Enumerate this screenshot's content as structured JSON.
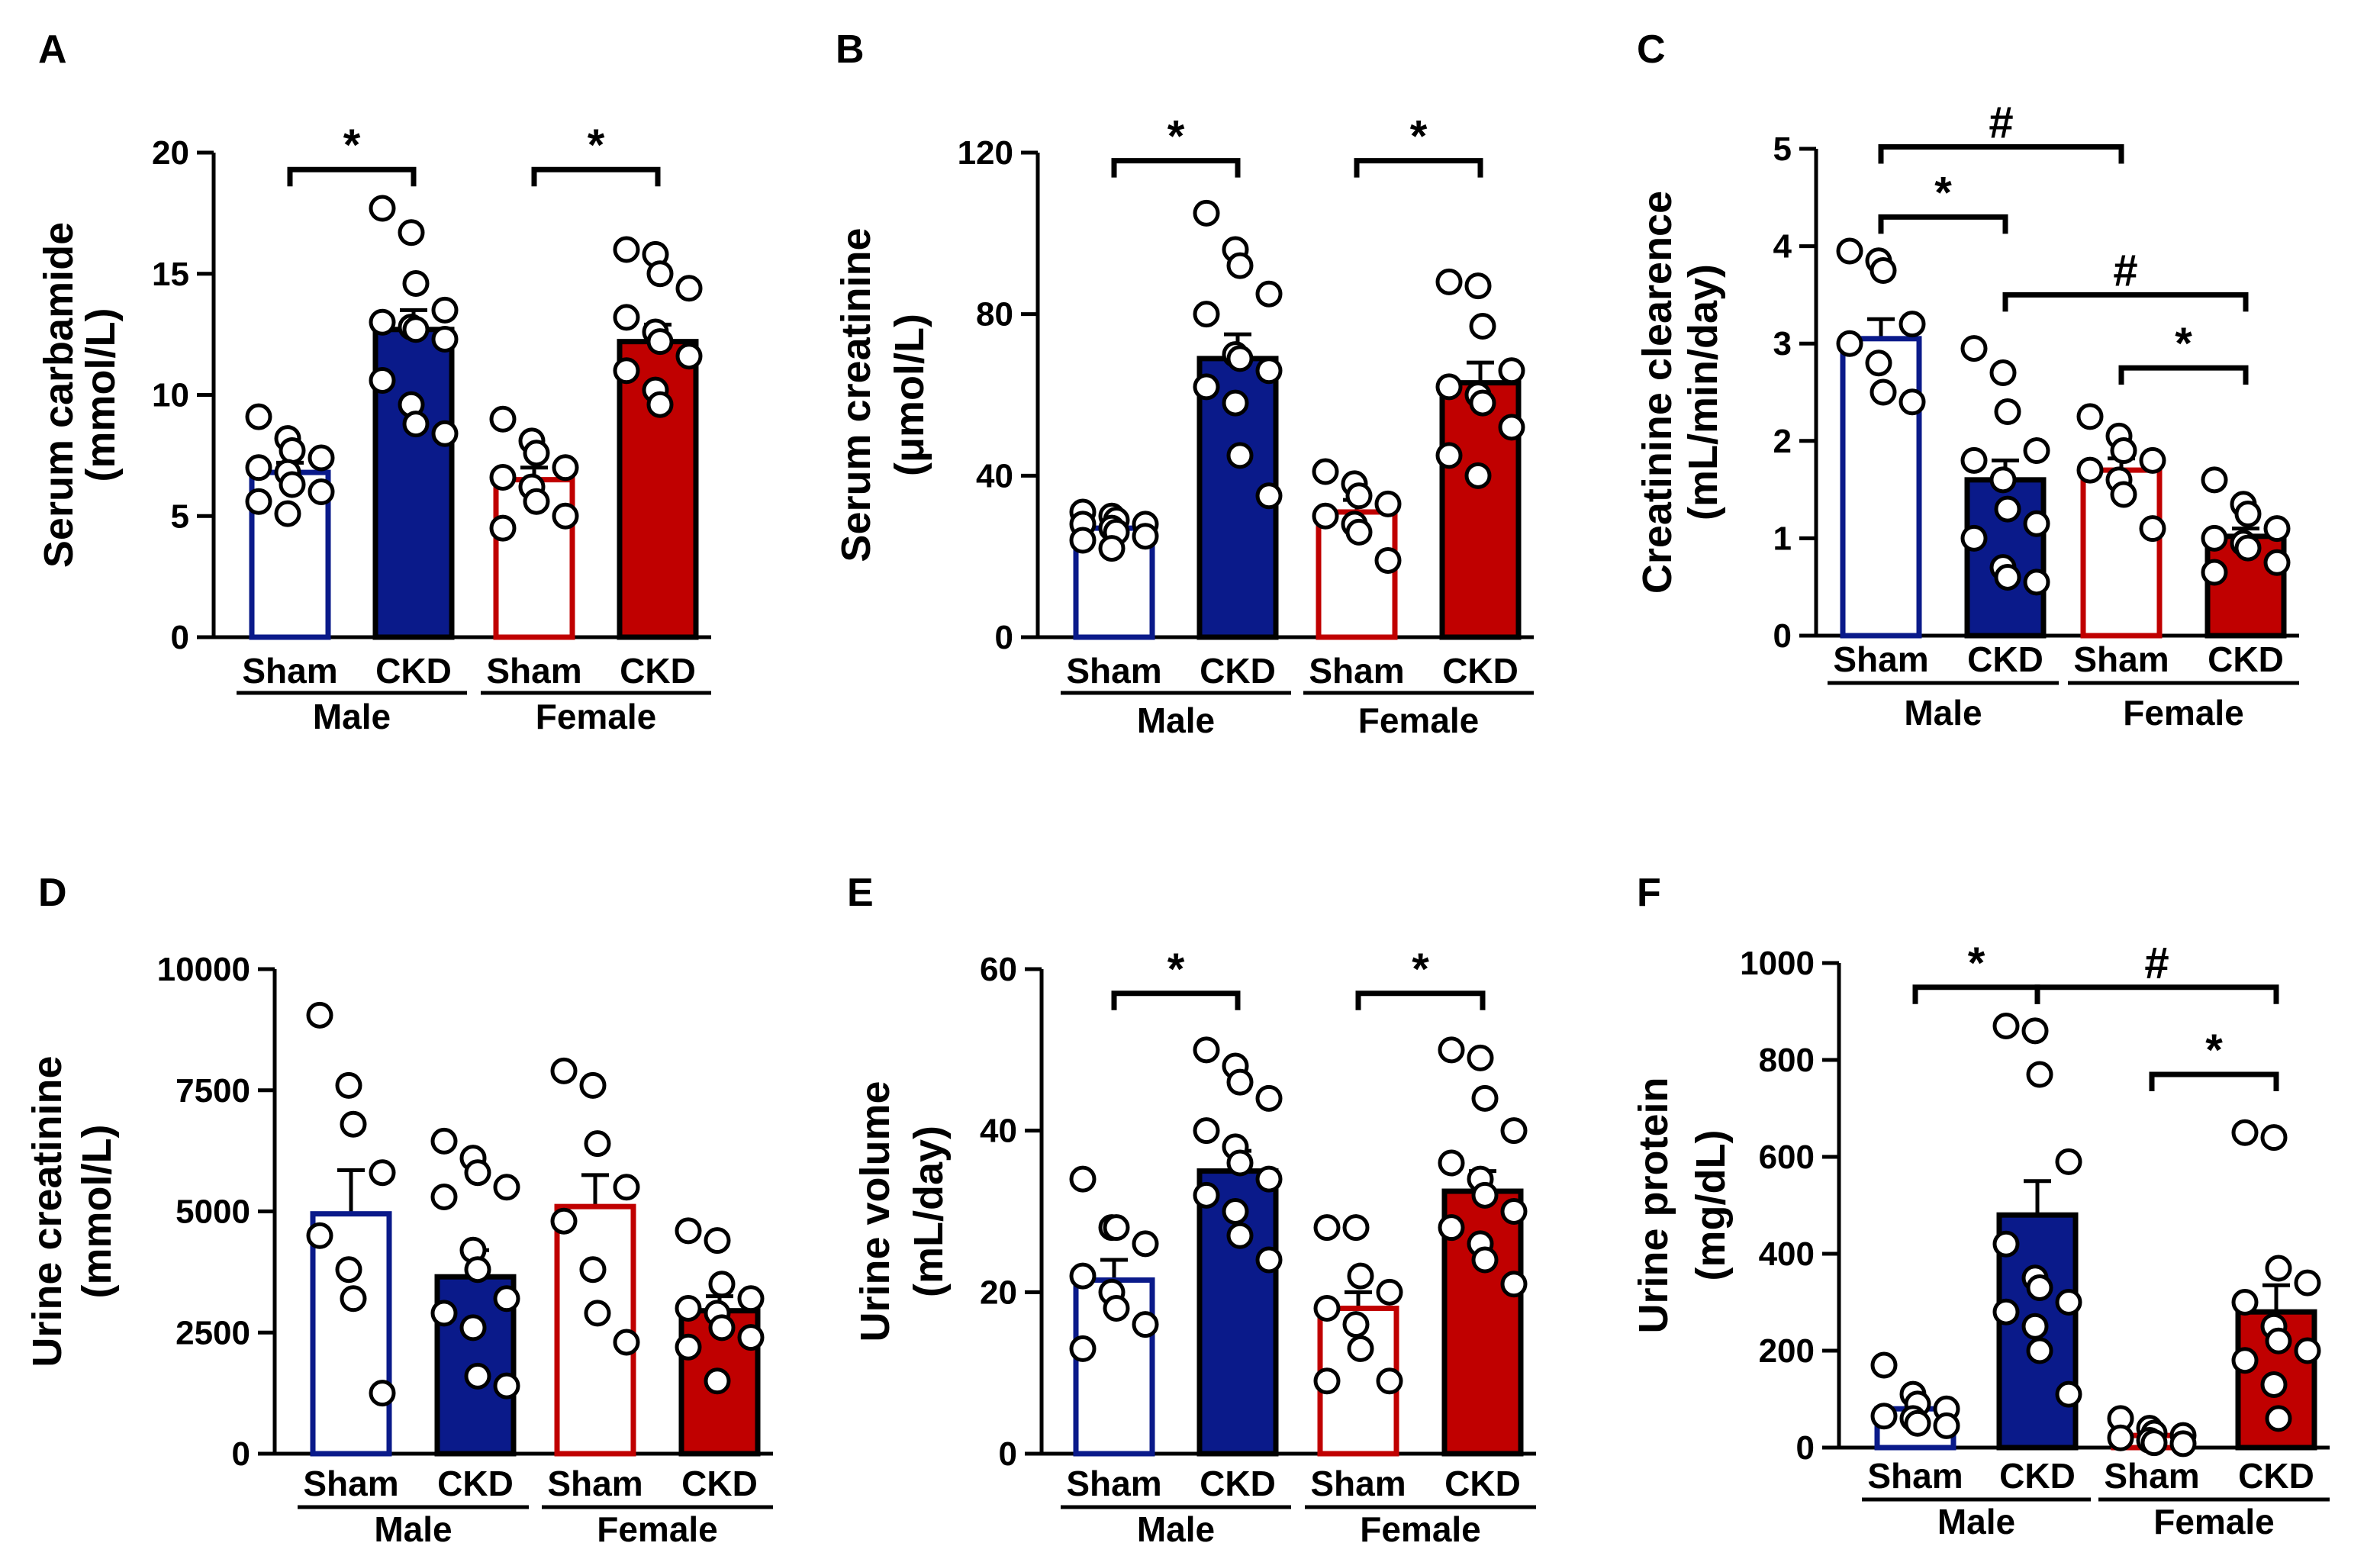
{
  "colors": {
    "male": "#0a1a8a",
    "female": "#c00000",
    "axis": "#000000",
    "dot_fill": "#ffffff"
  },
  "legend_groups": [
    "Sham",
    "CKD",
    "Sham",
    "CKD"
  ],
  "sexes": [
    "Male",
    "Female"
  ],
  "chart_data": [
    {
      "panel": "A",
      "type": "bar",
      "ylabel": [
        "Serum carbamide",
        "(mmol/L)"
      ],
      "ylim": [
        0,
        20
      ],
      "yticks": [
        0,
        5,
        10,
        15,
        20
      ],
      "categories": [
        "Sham",
        "CKD",
        "Sham",
        "CKD"
      ],
      "groups": [
        "Male",
        "Female"
      ],
      "values": [
        6.8,
        12.7,
        6.5,
        12.2
      ],
      "sem": [
        0.4,
        0.8,
        0.5,
        0.7
      ],
      "points": [
        [
          9.1,
          8.2,
          7.7,
          7.4,
          7.0,
          6.8,
          6.3,
          6.0,
          5.6,
          5.1
        ],
        [
          17.7,
          16.7,
          14.6,
          13.5,
          13.0,
          12.8,
          12.7,
          12.3,
          10.6,
          9.6,
          8.8,
          8.4
        ],
        [
          9.0,
          8.1,
          7.6,
          7.0,
          6.6,
          6.2,
          5.6,
          5.0,
          4.5
        ],
        [
          16.0,
          15.8,
          15.0,
          14.4,
          13.2,
          12.6,
          12.2,
          11.6,
          11.0,
          10.2,
          9.6
        ]
      ],
      "significance": [
        {
          "from": 0,
          "to": 1,
          "label": "*",
          "y": 19.3
        },
        {
          "from": 2,
          "to": 3,
          "label": "*",
          "y": 19.3
        }
      ]
    },
    {
      "panel": "B",
      "type": "bar",
      "ylabel": [
        "Serum creatinine",
        "(μmol/L)"
      ],
      "ylim": [
        0,
        120
      ],
      "yticks": [
        0,
        40,
        80,
        120
      ],
      "categories": [
        "Sham",
        "CKD",
        "Sham",
        "CKD"
      ],
      "groups": [
        "Male",
        "Female"
      ],
      "values": [
        27,
        69,
        31,
        63
      ],
      "sem": [
        1.0,
        6.0,
        3.0,
        5.0
      ],
      "points": [
        [
          31,
          30,
          29,
          28,
          28,
          27,
          26,
          25,
          24,
          22
        ],
        [
          105,
          96,
          92,
          85,
          80,
          70,
          69,
          66,
          62,
          58,
          45,
          35
        ],
        [
          41,
          38,
          35,
          33,
          30,
          28,
          26,
          19
        ],
        [
          88,
          87,
          77,
          66,
          62,
          60,
          58,
          52,
          45,
          40
        ]
      ],
      "significance": [
        {
          "from": 0,
          "to": 1,
          "label": "*",
          "y": 118
        },
        {
          "from": 2,
          "to": 3,
          "label": "*",
          "y": 118
        }
      ]
    },
    {
      "panel": "C",
      "type": "bar",
      "ylabel": [
        "Creatinine clearence",
        "(mL/min/day)"
      ],
      "ylim": [
        0,
        5
      ],
      "yticks": [
        0,
        1,
        2,
        3,
        4,
        5
      ],
      "categories": [
        "Sham",
        "CKD",
        "Sham",
        "CKD"
      ],
      "groups": [
        "Male",
        "Female"
      ],
      "values": [
        3.05,
        1.6,
        1.7,
        1.02
      ],
      "sem": [
        0.2,
        0.2,
        0.12,
        0.08
      ],
      "points": [
        [
          3.95,
          3.85,
          3.75,
          3.2,
          3.0,
          2.8,
          2.5,
          2.4
        ],
        [
          2.95,
          2.7,
          2.3,
          1.9,
          1.8,
          1.6,
          1.3,
          1.15,
          1.0,
          0.7,
          0.6,
          0.55
        ],
        [
          2.25,
          2.05,
          1.9,
          1.8,
          1.7,
          1.6,
          1.45,
          1.1
        ],
        [
          1.6,
          1.35,
          1.25,
          1.1,
          1.0,
          0.95,
          0.9,
          0.75,
          0.65
        ]
      ],
      "significance": [
        {
          "from": 0,
          "to": 1,
          "label": "*",
          "y": 4.3
        },
        {
          "from": 0,
          "to": 2,
          "label": "#",
          "y": 5.02
        },
        {
          "from": 1,
          "to": 3,
          "label": "#",
          "y": 3.5
        },
        {
          "from": 2,
          "to": 3,
          "label": "*",
          "y": 2.75
        }
      ]
    },
    {
      "panel": "D",
      "type": "bar",
      "ylabel": [
        "Urine creatinine",
        "(mmol/L)"
      ],
      "ylim": [
        0,
        10000
      ],
      "yticks": [
        0,
        2500,
        5000,
        7500,
        10000
      ],
      "categories": [
        "Sham",
        "CKD",
        "Sham",
        "CKD"
      ],
      "groups": [
        "Male",
        "Female"
      ],
      "values": [
        4950,
        3650,
        5100,
        2950
      ],
      "sem": [
        900,
        550,
        650,
        300
      ],
      "points": [
        [
          9050,
          7600,
          6800,
          5800,
          4500,
          3800,
          3200,
          1250
        ],
        [
          6450,
          6100,
          5800,
          5500,
          5300,
          4200,
          3800,
          3200,
          2900,
          2600,
          1600,
          1400
        ],
        [
          7900,
          7600,
          6400,
          5500,
          4800,
          3800,
          2900,
          2300
        ],
        [
          4600,
          4400,
          3500,
          3200,
          3000,
          2900,
          2600,
          2400,
          2200,
          1500
        ]
      ],
      "significance": []
    },
    {
      "panel": "E",
      "type": "bar",
      "ylabel": [
        "Urine volume",
        "(mL/day)"
      ],
      "ylim": [
        0,
        60
      ],
      "yticks": [
        0,
        20,
        40,
        60
      ],
      "categories": [
        "Sham",
        "CKD",
        "Sham",
        "CKD"
      ],
      "groups": [
        "Male",
        "Female"
      ],
      "values": [
        21.5,
        35,
        18,
        32.5
      ],
      "sem": [
        2.5,
        2.5,
        2.0,
        2.5
      ],
      "points": [
        [
          34,
          28,
          28,
          26,
          22,
          20,
          18,
          16,
          13
        ],
        [
          50,
          48,
          46,
          44,
          40,
          38,
          36,
          34,
          32,
          30,
          27,
          24
        ],
        [
          28,
          28,
          22,
          20,
          18,
          16,
          13,
          9,
          9
        ],
        [
          50,
          49,
          44,
          40,
          36,
          34,
          32,
          30,
          28,
          26,
          24,
          21
        ]
      ],
      "significance": [
        {
          "from": 0,
          "to": 1,
          "label": "*",
          "y": 57
        },
        {
          "from": 2,
          "to": 3,
          "label": "*",
          "y": 57
        }
      ]
    },
    {
      "panel": "F",
      "type": "bar",
      "ylabel": [
        "Urine protein",
        "(mg/dL)"
      ],
      "ylim": [
        0,
        1000
      ],
      "yticks": [
        0,
        200,
        400,
        600,
        800,
        1000
      ],
      "categories": [
        "Sham",
        "CKD",
        "Sham",
        "CKD"
      ],
      "groups": [
        "Male",
        "Female"
      ],
      "values": [
        80,
        480,
        25,
        280
      ],
      "sem": [
        20,
        70,
        10,
        55
      ],
      "points": [
        [
          170,
          110,
          90,
          80,
          65,
          60,
          50,
          45
        ],
        [
          870,
          860,
          770,
          590,
          420,
          350,
          330,
          300,
          280,
          250,
          200,
          110
        ],
        [
          60,
          40,
          30,
          25,
          20,
          15,
          10,
          8
        ],
        [
          650,
          640,
          370,
          340,
          300,
          250,
          220,
          200,
          180,
          130,
          60
        ]
      ],
      "significance": [
        {
          "from": 0,
          "to": 1,
          "label": "*",
          "y": 950
        },
        {
          "from": 1,
          "to": 3,
          "label": "#",
          "y": 950
        },
        {
          "from": 2,
          "to": 3,
          "label": "*",
          "y": 770
        }
      ]
    }
  ]
}
